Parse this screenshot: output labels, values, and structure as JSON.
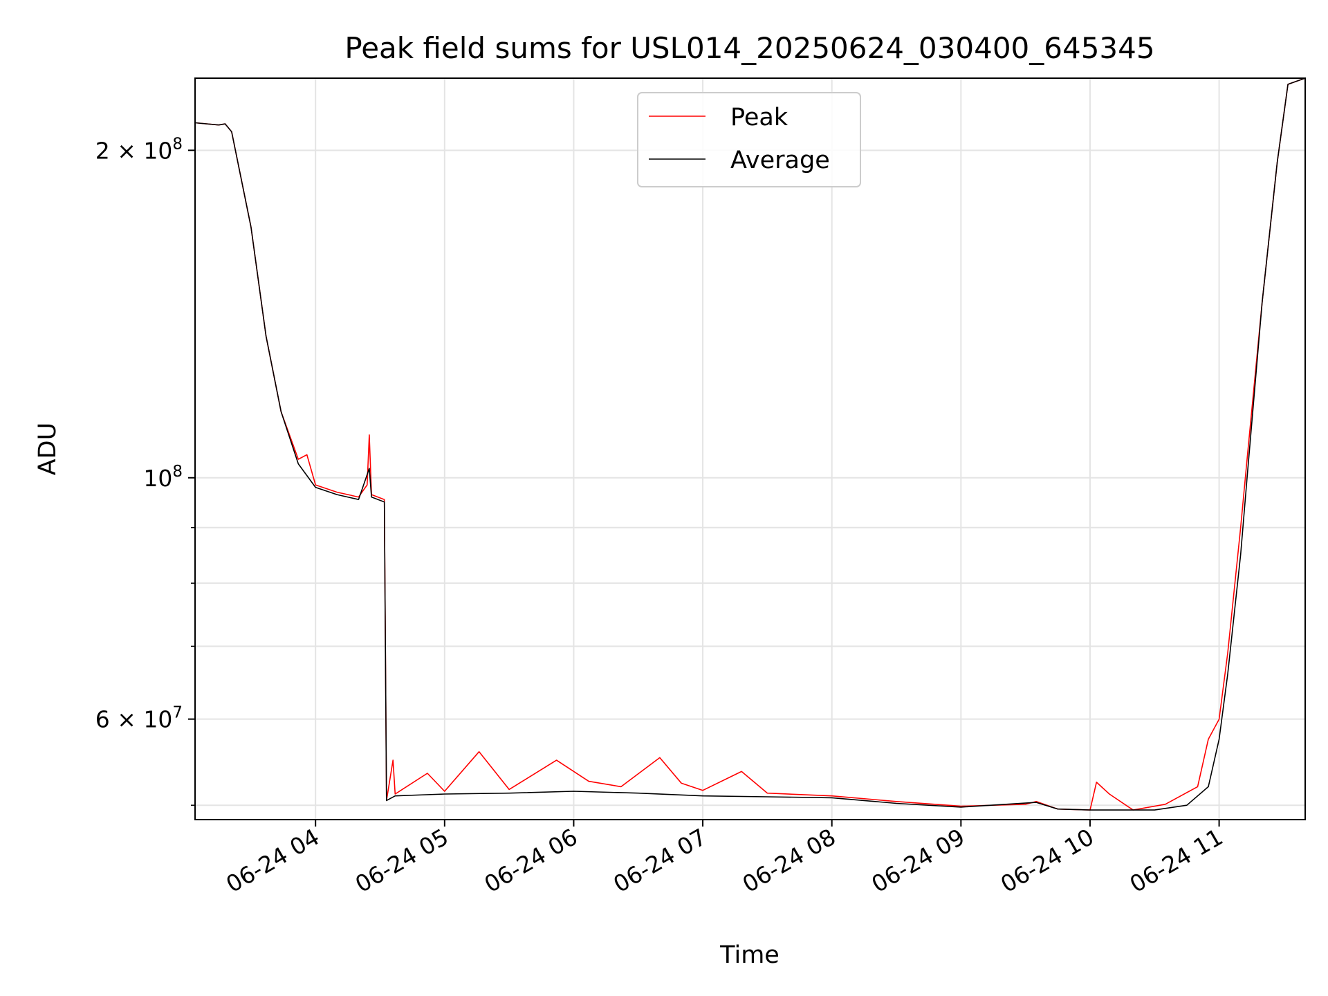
{
  "chart_data": {
    "type": "line",
    "title": "Peak field sums for USL014_20250624_030400_645345",
    "xlabel": "Time",
    "ylabel": "ADU",
    "y_scale": "log",
    "grid": true,
    "legend_position": "top-center",
    "xlim": [
      "2025-06-24 03:04",
      "2025-06-24 11:40"
    ],
    "ylim": [
      48500000,
      233000000
    ],
    "x_ticks": [
      {
        "value": "2025-06-24 04:00",
        "label": "06-24 04"
      },
      {
        "value": "2025-06-24 05:00",
        "label": "06-24 05"
      },
      {
        "value": "2025-06-24 06:00",
        "label": "06-24 06"
      },
      {
        "value": "2025-06-24 07:00",
        "label": "06-24 07"
      },
      {
        "value": "2025-06-24 08:00",
        "label": "06-24 08"
      },
      {
        "value": "2025-06-24 09:00",
        "label": "06-24 09"
      },
      {
        "value": "2025-06-24 10:00",
        "label": "06-24 10"
      },
      {
        "value": "2025-06-24 11:00",
        "label": "06-24 11"
      }
    ],
    "y_ticks": [
      {
        "value": 200000000,
        "base": "2 × 10",
        "exp": "8"
      },
      {
        "value": 100000000,
        "base": "10",
        "exp": "8"
      },
      {
        "value": 60000000,
        "base": "6 × 10",
        "exp": "7"
      }
    ],
    "y_minor_ticks": [
      50000000,
      70000000,
      80000000,
      90000000
    ],
    "series": [
      {
        "name": "Peak",
        "color": "#ff0000",
        "points": [
          [
            "2025-06-24 03:04",
            212000000
          ],
          [
            "2025-06-24 03:15",
            211000000
          ],
          [
            "2025-06-24 03:18",
            211500000
          ],
          [
            "2025-06-24 03:21",
            208000000
          ],
          [
            "2025-06-24 03:30",
            170000000
          ],
          [
            "2025-06-24 03:37",
            135000000
          ],
          [
            "2025-06-24 03:44",
            115000000
          ],
          [
            "2025-06-24 03:52",
            104000000
          ],
          [
            "2025-06-24 03:56",
            105000000
          ],
          [
            "2025-06-24 04:00",
            98500000
          ],
          [
            "2025-06-24 04:10",
            97000000
          ],
          [
            "2025-06-24 04:20",
            96000000
          ],
          [
            "2025-06-24 04:24",
            98500000
          ],
          [
            "2025-06-24 04:25",
            109500000
          ],
          [
            "2025-06-24 04:26",
            96500000
          ],
          [
            "2025-06-24 04:32",
            95500000
          ],
          [
            "2025-06-24 04:33",
            50500000
          ],
          [
            "2025-06-24 04:36",
            55000000
          ],
          [
            "2025-06-24 04:37",
            51200000
          ],
          [
            "2025-06-24 04:52",
            53500000
          ],
          [
            "2025-06-24 05:00",
            51500000
          ],
          [
            "2025-06-24 05:16",
            56000000
          ],
          [
            "2025-06-24 05:30",
            51700000
          ],
          [
            "2025-06-24 05:52",
            55000000
          ],
          [
            "2025-06-24 06:07",
            52600000
          ],
          [
            "2025-06-24 06:22",
            52000000
          ],
          [
            "2025-06-24 06:40",
            55300000
          ],
          [
            "2025-06-24 06:50",
            52400000
          ],
          [
            "2025-06-24 07:00",
            51600000
          ],
          [
            "2025-06-24 07:18",
            53700000
          ],
          [
            "2025-06-24 07:30",
            51300000
          ],
          [
            "2025-06-24 08:00",
            51000000
          ],
          [
            "2025-06-24 08:30",
            50400000
          ],
          [
            "2025-06-24 09:00",
            49900000
          ],
          [
            "2025-06-24 09:30",
            50100000
          ],
          [
            "2025-06-24 09:35",
            50400000
          ],
          [
            "2025-06-24 09:45",
            49600000
          ],
          [
            "2025-06-24 10:00",
            49500000
          ],
          [
            "2025-06-24 10:03",
            52500000
          ],
          [
            "2025-06-24 10:09",
            51200000
          ],
          [
            "2025-06-24 10:20",
            49500000
          ],
          [
            "2025-06-24 10:35",
            50100000
          ],
          [
            "2025-06-24 10:50",
            52000000
          ],
          [
            "2025-06-24 10:55",
            57500000
          ],
          [
            "2025-06-24 11:00",
            60000000
          ],
          [
            "2025-06-24 11:04",
            69000000
          ],
          [
            "2025-06-24 11:10",
            90000000
          ],
          [
            "2025-06-24 11:13",
            104000000
          ],
          [
            "2025-06-24 11:20",
            145000000
          ],
          [
            "2025-06-24 11:27",
            195000000
          ],
          [
            "2025-06-24 11:32",
            230000000
          ],
          [
            "2025-06-24 11:40",
            233000000
          ]
        ]
      },
      {
        "name": "Average",
        "color": "#000000",
        "points": [
          [
            "2025-06-24 03:04",
            212000000
          ],
          [
            "2025-06-24 03:15",
            211000000
          ],
          [
            "2025-06-24 03:18",
            211500000
          ],
          [
            "2025-06-24 03:21",
            208000000
          ],
          [
            "2025-06-24 03:30",
            170000000
          ],
          [
            "2025-06-24 03:37",
            135000000
          ],
          [
            "2025-06-24 03:44",
            115000000
          ],
          [
            "2025-06-24 03:52",
            103000000
          ],
          [
            "2025-06-24 04:00",
            98000000
          ],
          [
            "2025-06-24 04:10",
            96500000
          ],
          [
            "2025-06-24 04:20",
            95500000
          ],
          [
            "2025-06-24 04:25",
            102000000
          ],
          [
            "2025-06-24 04:26",
            96000000
          ],
          [
            "2025-06-24 04:32",
            95000000
          ],
          [
            "2025-06-24 04:33",
            50500000
          ],
          [
            "2025-06-24 04:37",
            51000000
          ],
          [
            "2025-06-24 05:00",
            51200000
          ],
          [
            "2025-06-24 05:30",
            51300000
          ],
          [
            "2025-06-24 06:00",
            51500000
          ],
          [
            "2025-06-24 06:30",
            51300000
          ],
          [
            "2025-06-24 07:00",
            51000000
          ],
          [
            "2025-06-24 07:30",
            50900000
          ],
          [
            "2025-06-24 08:00",
            50800000
          ],
          [
            "2025-06-24 08:30",
            50200000
          ],
          [
            "2025-06-24 09:00",
            49800000
          ],
          [
            "2025-06-24 09:35",
            50300000
          ],
          [
            "2025-06-24 09:45",
            49600000
          ],
          [
            "2025-06-24 10:00",
            49500000
          ],
          [
            "2025-06-24 10:30",
            49500000
          ],
          [
            "2025-06-24 10:45",
            50000000
          ],
          [
            "2025-06-24 10:55",
            52000000
          ],
          [
            "2025-06-24 11:00",
            57500000
          ],
          [
            "2025-06-24 11:04",
            66000000
          ],
          [
            "2025-06-24 11:10",
            85000000
          ],
          [
            "2025-06-24 11:13",
            100000000
          ],
          [
            "2025-06-24 11:20",
            145000000
          ],
          [
            "2025-06-24 11:27",
            195000000
          ],
          [
            "2025-06-24 11:32",
            230000000
          ],
          [
            "2025-06-24 11:40",
            233000000
          ]
        ]
      }
    ]
  }
}
